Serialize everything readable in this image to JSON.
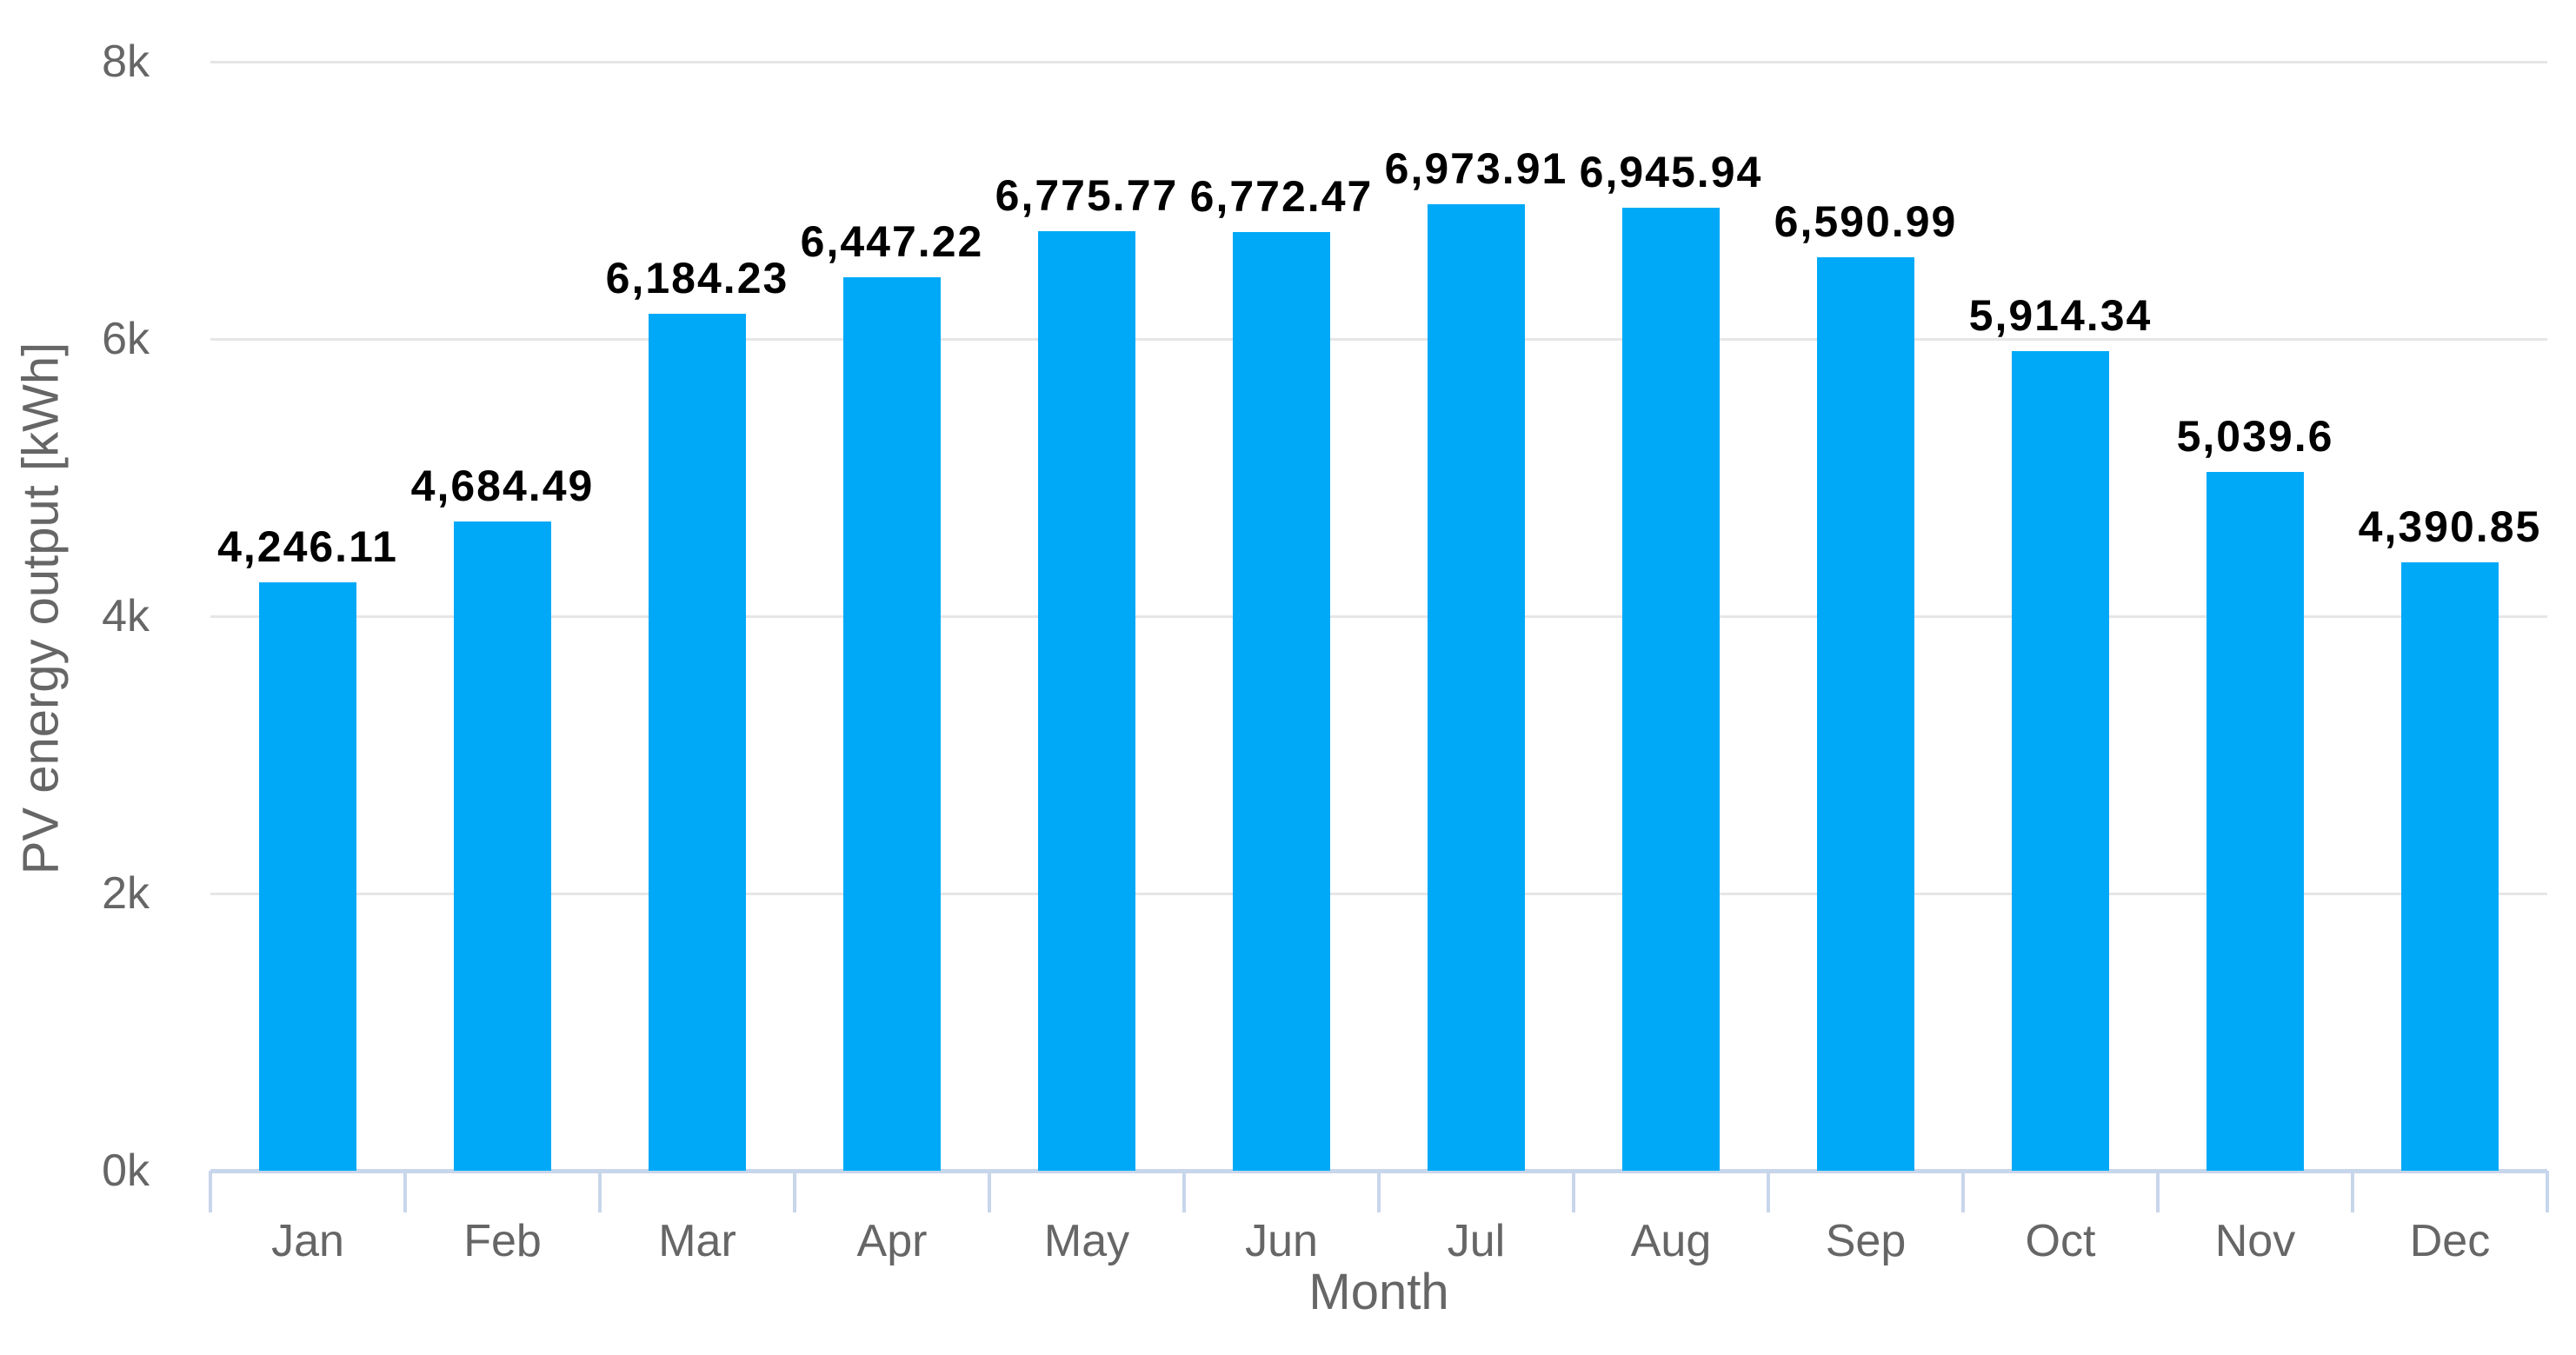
{
  "chart_data": {
    "type": "bar",
    "title": "",
    "categories": [
      "Jan",
      "Feb",
      "Mar",
      "Apr",
      "May",
      "Jun",
      "Jul",
      "Aug",
      "Sep",
      "Oct",
      "Nov",
      "Dec"
    ],
    "values": [
      4246.11,
      4684.49,
      6184.23,
      6447.22,
      6775.77,
      6772.47,
      6973.91,
      6945.94,
      6590.99,
      5914.34,
      5039.6,
      4390.85
    ],
    "value_labels": [
      "4,246.11",
      "4,684.49",
      "6,184.23",
      "6,447.22",
      "6,775.77",
      "6,772.47",
      "6,973.91",
      "6,945.94",
      "6,590.99",
      "5,914.34",
      "5,039.6",
      "4,390.85"
    ],
    "xlabel": "Month",
    "ylabel": "PV energy output [kWh]",
    "ylim": [
      0,
      8000
    ],
    "yticks": [
      {
        "value": 0,
        "label": "0k"
      },
      {
        "value": 2000,
        "label": "2k"
      },
      {
        "value": 4000,
        "label": "4k"
      },
      {
        "value": 6000,
        "label": "6k"
      },
      {
        "value": 8000,
        "label": "8k"
      }
    ],
    "grid": true,
    "legend": "none",
    "colors": {
      "bar": "#00a9f7",
      "gridline": "#e6e6e6",
      "axis_line": "#c8d6eb",
      "axis_text": "#666666",
      "data_label": "#000000",
      "background": "#ffffff"
    }
  }
}
